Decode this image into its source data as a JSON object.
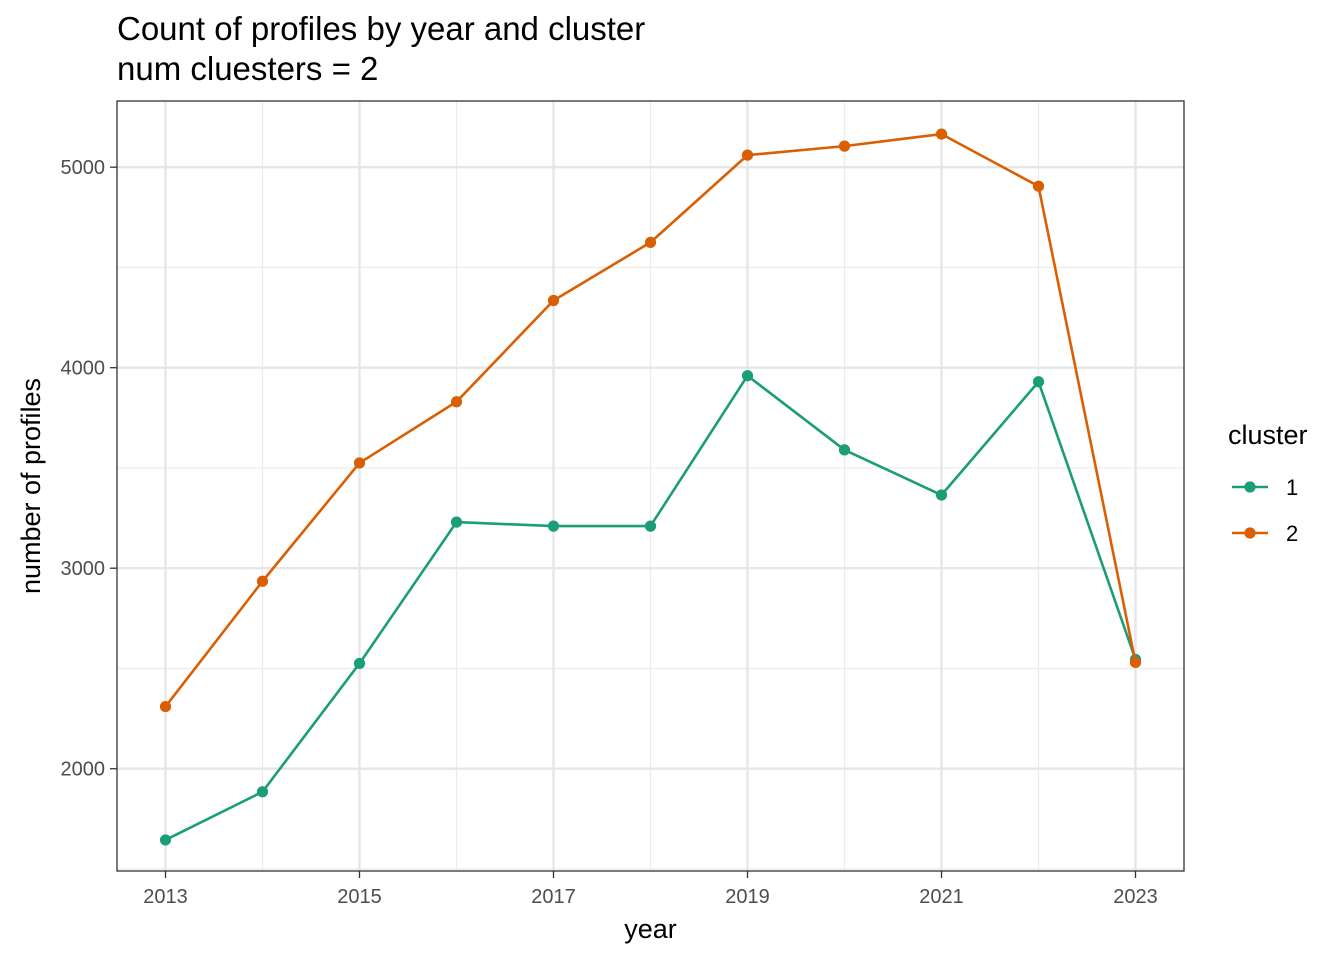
{
  "chart_data": {
    "type": "line",
    "title": "Count of profiles by year and cluster",
    "subtitle": "num cluesters = 2",
    "xlabel": "year",
    "ylabel": "number of profiles",
    "xlim": [
      2012.5,
      2023.5
    ],
    "ylim": [
      1490,
      5330
    ],
    "x_ticks": [
      2013,
      2015,
      2017,
      2019,
      2021,
      2023
    ],
    "x_ticks_minor": [
      2014,
      2016,
      2018,
      2020,
      2022
    ],
    "y_ticks": [
      2000,
      3000,
      4000,
      5000
    ],
    "y_ticks_minor": [
      1500,
      2500,
      3500,
      4500
    ],
    "grid": true,
    "legend": {
      "title": "cluster",
      "placement": "right"
    },
    "x": [
      2013,
      2014,
      2015,
      2016,
      2017,
      2018,
      2019,
      2020,
      2021,
      2022,
      2023
    ],
    "series": [
      {
        "name": "1",
        "color": "#1b9e77",
        "values": [
          1645,
          1885,
          2525,
          3230,
          3210,
          3210,
          3960,
          3590,
          3365,
          3930,
          2545
        ]
      },
      {
        "name": "2",
        "color": "#d95f02",
        "values": [
          2310,
          2935,
          3525,
          3830,
          4335,
          4625,
          5060,
          5105,
          5165,
          4905,
          2530
        ]
      }
    ]
  }
}
